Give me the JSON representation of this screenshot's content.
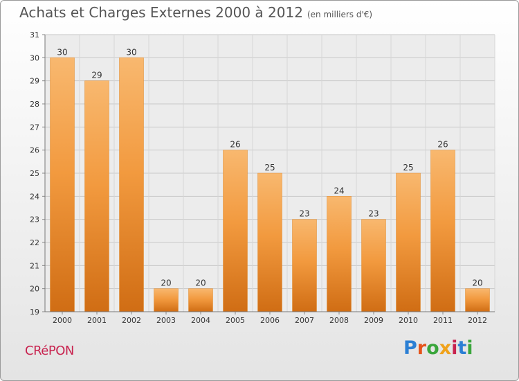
{
  "header": {
    "title": "Achats et Charges Externes 2000 à 2012",
    "unit": "(en milliers d'€)"
  },
  "footer": {
    "commune": "CRéPON",
    "logo_text": "Proxiti"
  },
  "colors": {
    "bar_fill": "#f29a3f",
    "bar_highlight": "#f8b86f",
    "bar_shadow": "#d06d14",
    "title": "#555555",
    "commune": "#c8234f",
    "logo_letters": [
      "#2b7fd4",
      "#e5531a",
      "#3aa63c",
      "#f0a21a",
      "#c8234f",
      "#2b7fd4",
      "#3aa63c"
    ]
  },
  "chart_data": {
    "type": "bar",
    "title": "Achats et Charges Externes 2000 à 2012",
    "subtitle": "(en milliers d'€)",
    "categories": [
      "2000",
      "2001",
      "2002",
      "2003",
      "2004",
      "2005",
      "2006",
      "2007",
      "2008",
      "2009",
      "2010",
      "2011",
      "2012"
    ],
    "values": [
      30,
      29,
      30,
      20,
      20,
      26,
      25,
      23,
      24,
      23,
      25,
      26,
      20
    ],
    "ylim": [
      19,
      31
    ],
    "yticks": [
      19,
      20,
      21,
      22,
      23,
      24,
      25,
      26,
      27,
      28,
      29,
      30,
      31
    ],
    "grid": true,
    "legend": "none",
    "data_labels": true
  }
}
